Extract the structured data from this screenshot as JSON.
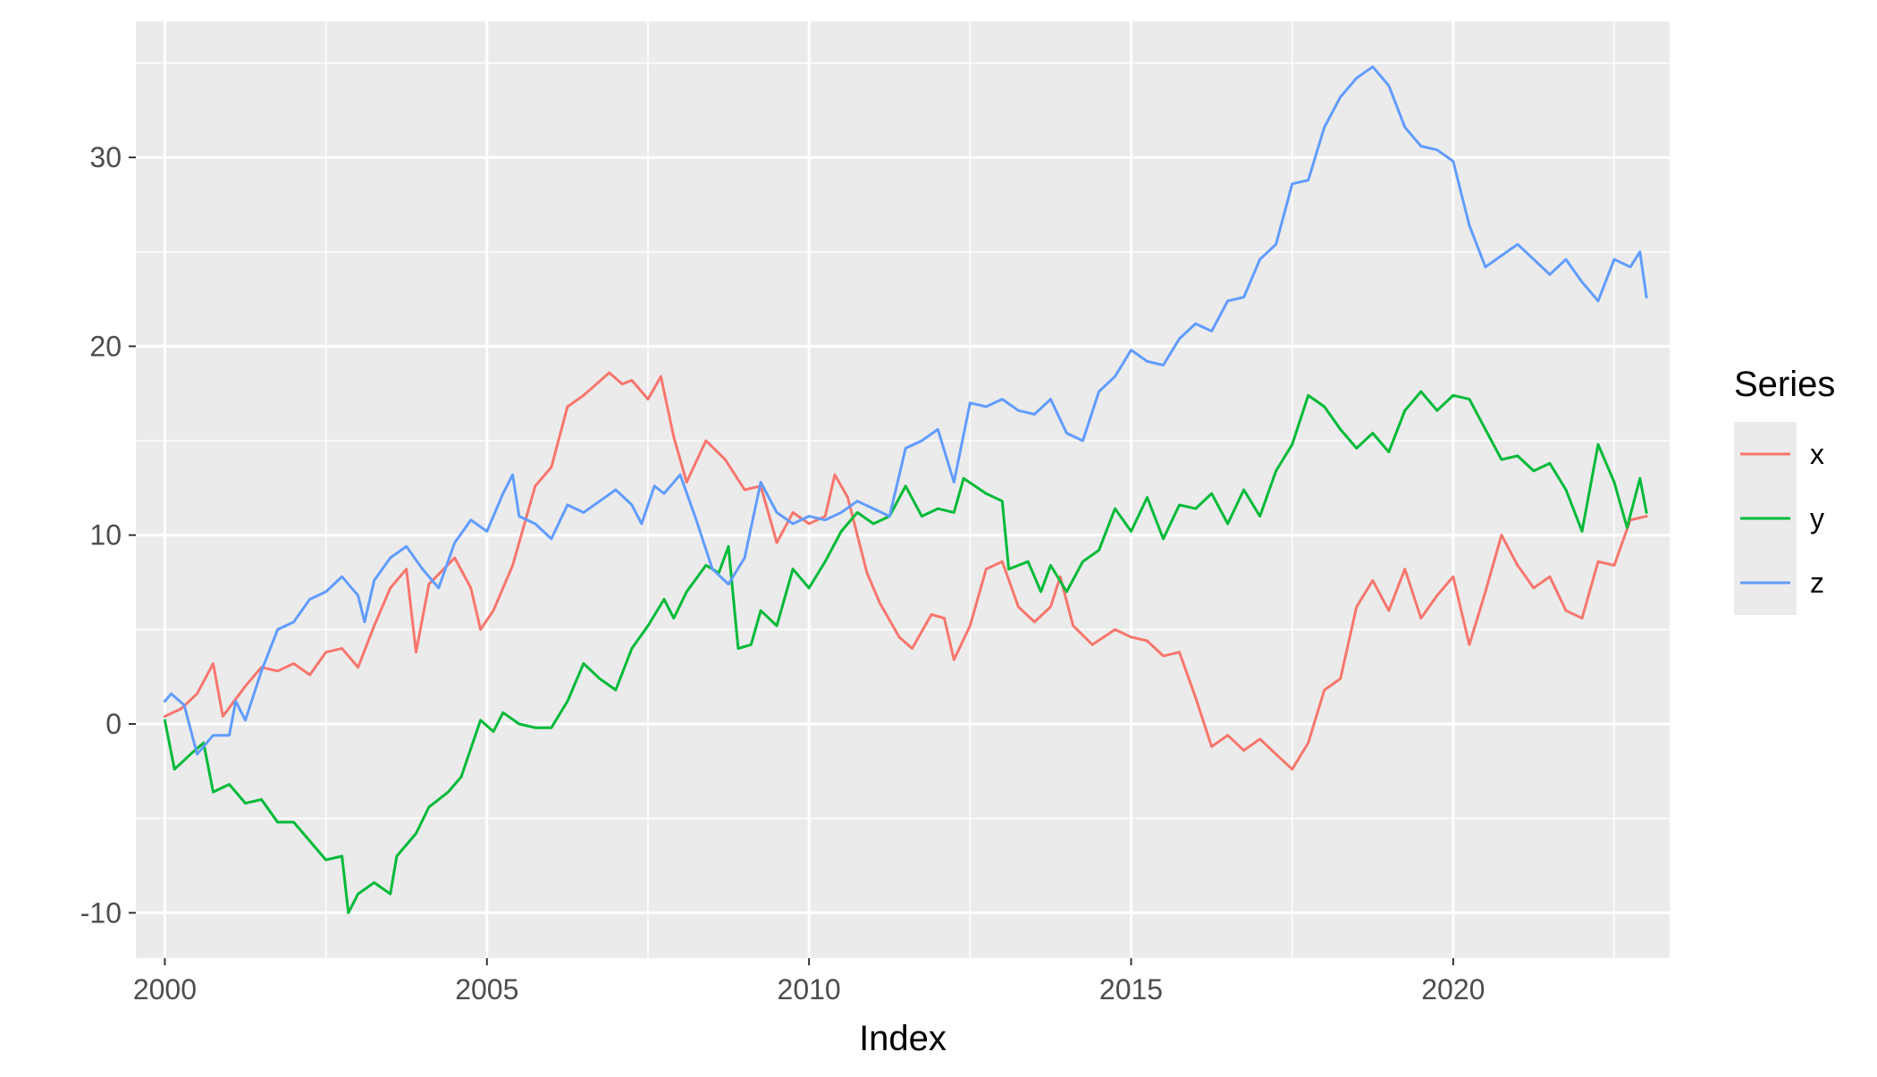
{
  "chart_data": {
    "type": "line",
    "title": "",
    "xlabel": "Index",
    "ylabel": "",
    "xlim": [
      1999.55,
      2023.36
    ],
    "ylim": [
      -12.4,
      37.2
    ],
    "x_ticks": [
      2000,
      2005,
      2010,
      2015,
      2020
    ],
    "x_tick_labels": [
      "2000",
      "2005",
      "2010",
      "2015",
      "2020"
    ],
    "y_ticks": [
      -10,
      0,
      10,
      20,
      30
    ],
    "y_tick_labels": [
      "-10",
      "0",
      "10",
      "20",
      "30"
    ],
    "grid": true,
    "panel_background": "#ebebeb",
    "legend": {
      "title": "Series",
      "position": "right"
    },
    "series": [
      {
        "name": "x",
        "color": "#f8766d",
        "points": [
          [
            2000.0,
            0.4
          ],
          [
            2000.25,
            0.8
          ],
          [
            2000.5,
            1.6
          ],
          [
            2000.75,
            3.2
          ],
          [
            2000.9,
            0.4
          ],
          [
            2001.25,
            2.0
          ],
          [
            2001.5,
            3.0
          ],
          [
            2001.75,
            2.8
          ],
          [
            2002.0,
            3.2
          ],
          [
            2002.25,
            2.6
          ],
          [
            2002.5,
            3.8
          ],
          [
            2002.75,
            4.0
          ],
          [
            2003.0,
            3.0
          ],
          [
            2003.25,
            5.2
          ],
          [
            2003.5,
            7.2
          ],
          [
            2003.75,
            8.2
          ],
          [
            2003.9,
            3.8
          ],
          [
            2004.1,
            7.4
          ],
          [
            2004.5,
            8.8
          ],
          [
            2004.75,
            7.2
          ],
          [
            2004.9,
            5.0
          ],
          [
            2005.1,
            6.0
          ],
          [
            2005.4,
            8.4
          ],
          [
            2005.75,
            12.6
          ],
          [
            2006.0,
            13.6
          ],
          [
            2006.25,
            16.8
          ],
          [
            2006.5,
            17.4
          ],
          [
            2006.9,
            18.6
          ],
          [
            2007.1,
            18.0
          ],
          [
            2007.25,
            18.2
          ],
          [
            2007.5,
            17.2
          ],
          [
            2007.7,
            18.4
          ],
          [
            2007.9,
            15.2
          ],
          [
            2008.1,
            12.8
          ],
          [
            2008.4,
            15.0
          ],
          [
            2008.7,
            14.0
          ],
          [
            2009.0,
            12.4
          ],
          [
            2009.25,
            12.6
          ],
          [
            2009.5,
            9.6
          ],
          [
            2009.75,
            11.2
          ],
          [
            2010.0,
            10.6
          ],
          [
            2010.25,
            11.0
          ],
          [
            2010.4,
            13.2
          ],
          [
            2010.6,
            12.0
          ],
          [
            2010.9,
            8.0
          ],
          [
            2011.1,
            6.4
          ],
          [
            2011.4,
            4.6
          ],
          [
            2011.6,
            4.0
          ],
          [
            2011.9,
            5.8
          ],
          [
            2012.1,
            5.6
          ],
          [
            2012.25,
            3.4
          ],
          [
            2012.5,
            5.2
          ],
          [
            2012.75,
            8.2
          ],
          [
            2013.0,
            8.6
          ],
          [
            2013.25,
            6.2
          ],
          [
            2013.5,
            5.4
          ],
          [
            2013.75,
            6.2
          ],
          [
            2013.9,
            7.8
          ],
          [
            2014.1,
            5.2
          ],
          [
            2014.4,
            4.2
          ],
          [
            2014.75,
            5.0
          ],
          [
            2015.0,
            4.6
          ],
          [
            2015.25,
            4.4
          ],
          [
            2015.5,
            3.6
          ],
          [
            2015.75,
            3.8
          ],
          [
            2016.0,
            1.4
          ],
          [
            2016.25,
            -1.2
          ],
          [
            2016.5,
            -0.6
          ],
          [
            2016.75,
            -1.4
          ],
          [
            2017.0,
            -0.8
          ],
          [
            2017.25,
            -1.6
          ],
          [
            2017.5,
            -2.4
          ],
          [
            2017.75,
            -1.0
          ],
          [
            2018.0,
            1.8
          ],
          [
            2018.25,
            2.4
          ],
          [
            2018.5,
            6.2
          ],
          [
            2018.75,
            7.6
          ],
          [
            2019.0,
            6.0
          ],
          [
            2019.25,
            8.2
          ],
          [
            2019.5,
            5.6
          ],
          [
            2019.75,
            6.8
          ],
          [
            2020.0,
            7.8
          ],
          [
            2020.25,
            4.2
          ],
          [
            2020.5,
            7.0
          ],
          [
            2020.75,
            10.0
          ],
          [
            2021.0,
            8.4
          ],
          [
            2021.25,
            7.2
          ],
          [
            2021.5,
            7.8
          ],
          [
            2021.75,
            6.0
          ],
          [
            2022.0,
            5.6
          ],
          [
            2022.25,
            8.6
          ],
          [
            2022.5,
            8.4
          ],
          [
            2022.75,
            10.8
          ],
          [
            2023.0,
            11.0
          ]
        ]
      },
      {
        "name": "y",
        "color": "#00ba38",
        "points": [
          [
            2000.0,
            0.2
          ],
          [
            2000.15,
            -2.4
          ],
          [
            2000.4,
            -1.6
          ],
          [
            2000.6,
            -1.0
          ],
          [
            2000.75,
            -3.6
          ],
          [
            2001.0,
            -3.2
          ],
          [
            2001.25,
            -4.2
          ],
          [
            2001.5,
            -4.0
          ],
          [
            2001.75,
            -5.2
          ],
          [
            2002.0,
            -5.2
          ],
          [
            2002.25,
            -6.2
          ],
          [
            2002.5,
            -7.2
          ],
          [
            2002.75,
            -7.0
          ],
          [
            2002.85,
            -10.0
          ],
          [
            2003.0,
            -9.0
          ],
          [
            2003.25,
            -8.4
          ],
          [
            2003.5,
            -9.0
          ],
          [
            2003.6,
            -7.0
          ],
          [
            2003.9,
            -5.8
          ],
          [
            2004.1,
            -4.4
          ],
          [
            2004.4,
            -3.6
          ],
          [
            2004.6,
            -2.8
          ],
          [
            2004.9,
            0.2
          ],
          [
            2005.1,
            -0.4
          ],
          [
            2005.25,
            0.6
          ],
          [
            2005.5,
            0.0
          ],
          [
            2005.75,
            -0.2
          ],
          [
            2006.0,
            -0.2
          ],
          [
            2006.25,
            1.2
          ],
          [
            2006.5,
            3.2
          ],
          [
            2006.75,
            2.4
          ],
          [
            2007.0,
            1.8
          ],
          [
            2007.25,
            4.0
          ],
          [
            2007.5,
            5.2
          ],
          [
            2007.75,
            6.6
          ],
          [
            2007.9,
            5.6
          ],
          [
            2008.1,
            7.0
          ],
          [
            2008.4,
            8.4
          ],
          [
            2008.6,
            8.0
          ],
          [
            2008.75,
            9.4
          ],
          [
            2008.9,
            4.0
          ],
          [
            2009.1,
            4.2
          ],
          [
            2009.25,
            6.0
          ],
          [
            2009.5,
            5.2
          ],
          [
            2009.75,
            8.2
          ],
          [
            2010.0,
            7.2
          ],
          [
            2010.25,
            8.6
          ],
          [
            2010.5,
            10.2
          ],
          [
            2010.75,
            11.2
          ],
          [
            2011.0,
            10.6
          ],
          [
            2011.25,
            11.0
          ],
          [
            2011.5,
            12.6
          ],
          [
            2011.75,
            11.0
          ],
          [
            2012.0,
            11.4
          ],
          [
            2012.25,
            11.2
          ],
          [
            2012.4,
            13.0
          ],
          [
            2012.75,
            12.2
          ],
          [
            2013.0,
            11.8
          ],
          [
            2013.1,
            8.2
          ],
          [
            2013.4,
            8.6
          ],
          [
            2013.6,
            7.0
          ],
          [
            2013.75,
            8.4
          ],
          [
            2014.0,
            7.0
          ],
          [
            2014.25,
            8.6
          ],
          [
            2014.5,
            9.2
          ],
          [
            2014.75,
            11.4
          ],
          [
            2015.0,
            10.2
          ],
          [
            2015.25,
            12.0
          ],
          [
            2015.5,
            9.8
          ],
          [
            2015.75,
            11.6
          ],
          [
            2016.0,
            11.4
          ],
          [
            2016.25,
            12.2
          ],
          [
            2016.5,
            10.6
          ],
          [
            2016.75,
            12.4
          ],
          [
            2017.0,
            11.0
          ],
          [
            2017.25,
            13.4
          ],
          [
            2017.5,
            14.8
          ],
          [
            2017.75,
            17.4
          ],
          [
            2018.0,
            16.8
          ],
          [
            2018.25,
            15.6
          ],
          [
            2018.5,
            14.6
          ],
          [
            2018.75,
            15.4
          ],
          [
            2019.0,
            14.4
          ],
          [
            2019.25,
            16.6
          ],
          [
            2019.5,
            17.6
          ],
          [
            2019.75,
            16.6
          ],
          [
            2020.0,
            17.4
          ],
          [
            2020.25,
            17.2
          ],
          [
            2020.5,
            15.6
          ],
          [
            2020.75,
            14.0
          ],
          [
            2021.0,
            14.2
          ],
          [
            2021.25,
            13.4
          ],
          [
            2021.5,
            13.8
          ],
          [
            2021.75,
            12.4
          ],
          [
            2022.0,
            10.2
          ],
          [
            2022.25,
            14.8
          ],
          [
            2022.5,
            12.8
          ],
          [
            2022.7,
            10.4
          ],
          [
            2022.9,
            13.0
          ],
          [
            2023.0,
            11.2
          ]
        ]
      },
      {
        "name": "z",
        "color": "#619cff",
        "points": [
          [
            2000.0,
            1.2
          ],
          [
            2000.1,
            1.6
          ],
          [
            2000.3,
            1.0
          ],
          [
            2000.5,
            -1.6
          ],
          [
            2000.75,
            -0.6
          ],
          [
            2001.0,
            -0.6
          ],
          [
            2001.1,
            1.2
          ],
          [
            2001.25,
            0.2
          ],
          [
            2001.5,
            2.8
          ],
          [
            2001.75,
            5.0
          ],
          [
            2002.0,
            5.4
          ],
          [
            2002.25,
            6.6
          ],
          [
            2002.5,
            7.0
          ],
          [
            2002.75,
            7.8
          ],
          [
            2003.0,
            6.8
          ],
          [
            2003.1,
            5.4
          ],
          [
            2003.25,
            7.6
          ],
          [
            2003.5,
            8.8
          ],
          [
            2003.75,
            9.4
          ],
          [
            2004.0,
            8.2
          ],
          [
            2004.25,
            7.2
          ],
          [
            2004.5,
            9.6
          ],
          [
            2004.75,
            10.8
          ],
          [
            2005.0,
            10.2
          ],
          [
            2005.25,
            12.2
          ],
          [
            2005.4,
            13.2
          ],
          [
            2005.5,
            11.0
          ],
          [
            2005.75,
            10.6
          ],
          [
            2006.0,
            9.8
          ],
          [
            2006.25,
            11.6
          ],
          [
            2006.5,
            11.2
          ],
          [
            2006.75,
            11.8
          ],
          [
            2007.0,
            12.4
          ],
          [
            2007.25,
            11.6
          ],
          [
            2007.4,
            10.6
          ],
          [
            2007.6,
            12.6
          ],
          [
            2007.75,
            12.2
          ],
          [
            2008.0,
            13.2
          ],
          [
            2008.25,
            10.8
          ],
          [
            2008.5,
            8.2
          ],
          [
            2008.75,
            7.4
          ],
          [
            2009.0,
            8.8
          ],
          [
            2009.25,
            12.8
          ],
          [
            2009.5,
            11.2
          ],
          [
            2009.75,
            10.6
          ],
          [
            2010.0,
            11.0
          ],
          [
            2010.25,
            10.8
          ],
          [
            2010.5,
            11.2
          ],
          [
            2010.75,
            11.8
          ],
          [
            2011.0,
            11.4
          ],
          [
            2011.25,
            11.0
          ],
          [
            2011.5,
            14.6
          ],
          [
            2011.75,
            15.0
          ],
          [
            2012.0,
            15.6
          ],
          [
            2012.25,
            12.8
          ],
          [
            2012.5,
            17.0
          ],
          [
            2012.75,
            16.8
          ],
          [
            2013.0,
            17.2
          ],
          [
            2013.25,
            16.6
          ],
          [
            2013.5,
            16.4
          ],
          [
            2013.75,
            17.2
          ],
          [
            2014.0,
            15.4
          ],
          [
            2014.25,
            15.0
          ],
          [
            2014.5,
            17.6
          ],
          [
            2014.75,
            18.4
          ],
          [
            2015.0,
            19.8
          ],
          [
            2015.25,
            19.2
          ],
          [
            2015.5,
            19.0
          ],
          [
            2015.75,
            20.4
          ],
          [
            2016.0,
            21.2
          ],
          [
            2016.25,
            20.8
          ],
          [
            2016.5,
            22.4
          ],
          [
            2016.75,
            22.6
          ],
          [
            2017.0,
            24.6
          ],
          [
            2017.25,
            25.4
          ],
          [
            2017.5,
            28.6
          ],
          [
            2017.75,
            28.8
          ],
          [
            2018.0,
            31.6
          ],
          [
            2018.25,
            33.2
          ],
          [
            2018.5,
            34.2
          ],
          [
            2018.75,
            34.8
          ],
          [
            2019.0,
            33.8
          ],
          [
            2019.25,
            31.6
          ],
          [
            2019.5,
            30.6
          ],
          [
            2019.75,
            30.4
          ],
          [
            2020.0,
            29.8
          ],
          [
            2020.25,
            26.4
          ],
          [
            2020.5,
            24.2
          ],
          [
            2020.75,
            24.8
          ],
          [
            2021.0,
            25.4
          ],
          [
            2021.25,
            24.6
          ],
          [
            2021.5,
            23.8
          ],
          [
            2021.75,
            24.6
          ],
          [
            2022.0,
            23.4
          ],
          [
            2022.25,
            22.4
          ],
          [
            2022.5,
            24.6
          ],
          [
            2022.75,
            24.2
          ],
          [
            2022.9,
            25.0
          ],
          [
            2023.0,
            22.6
          ]
        ]
      }
    ]
  }
}
